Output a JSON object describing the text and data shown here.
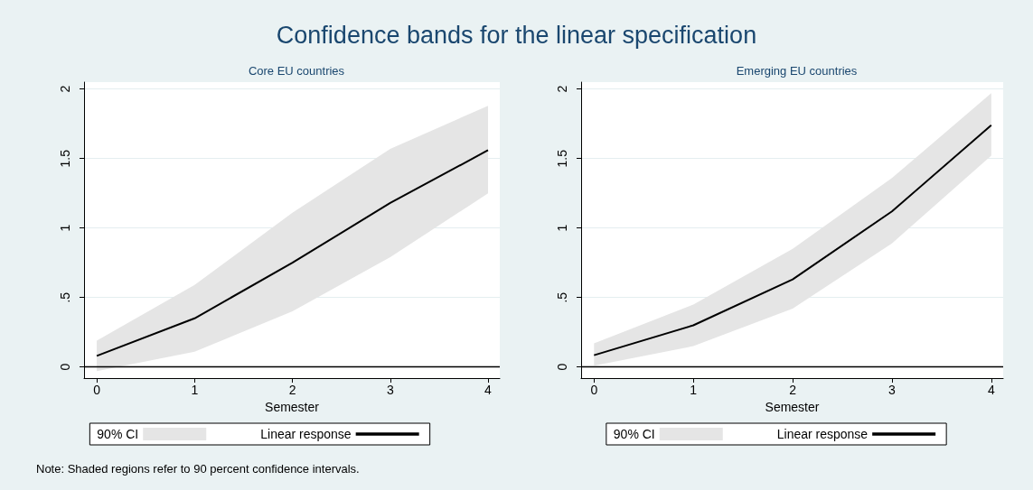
{
  "chart_data": [
    {
      "type": "line",
      "title": "Confidence bands for the linear specification",
      "subtitle": "Core EU countries",
      "xlabel": "Semester",
      "annotations": [
        "Note: Shaded regions refer to 90 percent confidence intervals."
      ],
      "x": [
        0,
        1,
        2,
        3,
        4
      ],
      "series": [
        {
          "name": "90% CI",
          "type": "area",
          "color": "#e5e5e5",
          "values": [
            null,
            null,
            null,
            null,
            null
          ],
          "lower": [
            -0.03,
            0.11,
            0.4,
            0.79,
            1.25
          ],
          "upper": [
            0.19,
            0.59,
            1.11,
            1.57,
            1.88
          ]
        },
        {
          "name": "Linear response",
          "color": "#000000",
          "values": [
            0.08,
            0.35,
            0.75,
            1.18,
            1.56
          ]
        }
      ],
      "xlim": [
        -0.13,
        4.12
      ],
      "xticks": [
        0,
        1,
        2,
        3,
        4
      ],
      "ylim": [
        -0.08,
        2.05
      ],
      "yticks": [
        0,
        {
          "value": 0.5,
          "label": ".5"
        },
        1,
        1.5,
        2
      ],
      "ref_lines": [
        {
          "axis": "y",
          "value": 0,
          "color": "#000000"
        }
      ],
      "grid": "y",
      "legend": "bottom",
      "marker": "none"
    },
    {
      "type": "line",
      "subtitle": "Emerging EU countries",
      "xlabel": "Semester",
      "x": [
        0,
        1,
        2,
        3,
        4
      ],
      "series": [
        {
          "name": "90% CI",
          "type": "area",
          "color": "#e5e5e5",
          "values": [
            null,
            null,
            null,
            null,
            null
          ],
          "lower": [
            0.01,
            0.15,
            0.42,
            0.89,
            1.52
          ],
          "upper": [
            0.17,
            0.45,
            0.85,
            1.36,
            1.97
          ]
        },
        {
          "name": "Linear response",
          "color": "#000000",
          "values": [
            0.085,
            0.3,
            0.63,
            1.12,
            1.74
          ]
        }
      ],
      "xlim": [
        -0.13,
        4.12
      ],
      "xticks": [
        0,
        1,
        2,
        3,
        4
      ],
      "ylim": [
        -0.08,
        2.05
      ],
      "yticks": [
        0,
        {
          "value": 0.5,
          "label": ".5"
        },
        1,
        1.5,
        2
      ],
      "ref_lines": [
        {
          "axis": "y",
          "value": 0,
          "color": "#000000"
        }
      ],
      "grid": "y",
      "legend": "bottom",
      "marker": "none"
    }
  ]
}
